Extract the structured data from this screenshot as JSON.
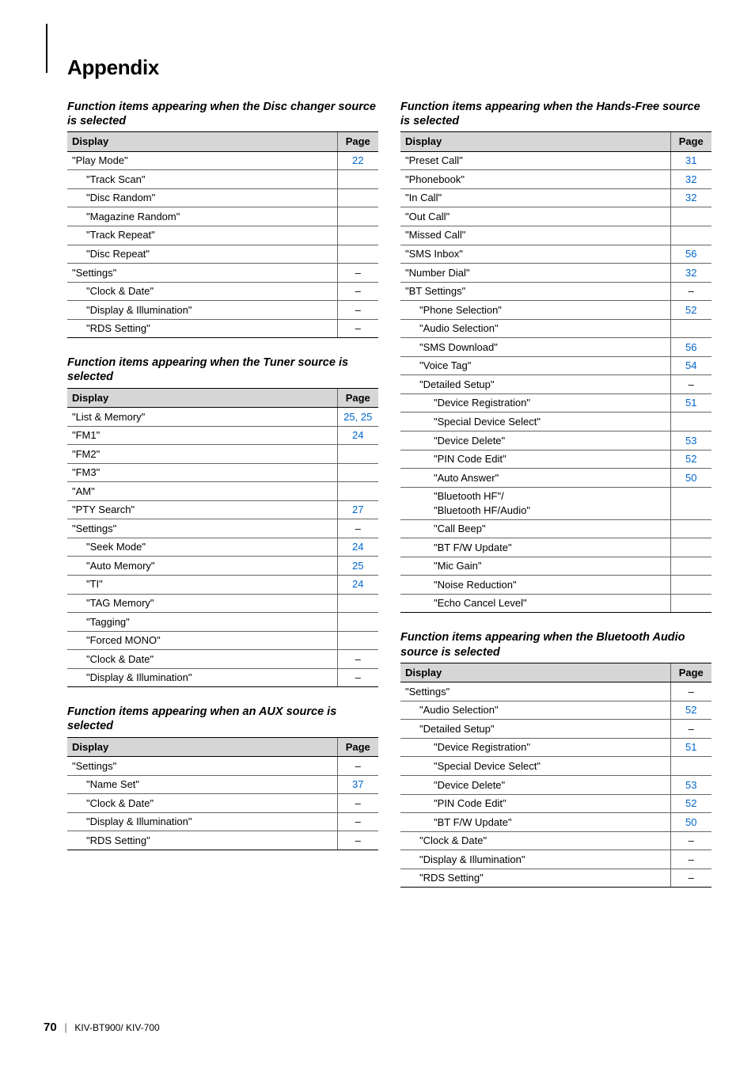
{
  "title": "Appendix",
  "footer": {
    "page": "70",
    "model": "KIV-BT900/ KIV-700"
  },
  "headers": {
    "display": "Display",
    "page": "Page"
  },
  "sections": {
    "disc": {
      "title": "Function items appearing when the Disc changer source is selected",
      "rows": [
        {
          "label": "\"Play Mode\"",
          "indent": 0,
          "page": "22",
          "link": true
        },
        {
          "label": "\"Track Scan\"",
          "indent": 1,
          "page": "",
          "link": false
        },
        {
          "label": "\"Disc Random\"",
          "indent": 1,
          "page": "",
          "link": false
        },
        {
          "label": "\"Magazine Random\"",
          "indent": 1,
          "page": "",
          "link": false
        },
        {
          "label": "\"Track Repeat\"",
          "indent": 1,
          "page": "",
          "link": false
        },
        {
          "label": "\"Disc Repeat\"",
          "indent": 1,
          "page": "",
          "link": false
        },
        {
          "label": "\"Settings\"",
          "indent": 0,
          "page": "–",
          "link": false
        },
        {
          "label": "\"Clock & Date\"",
          "indent": 1,
          "page": "–",
          "link": false
        },
        {
          "label": "\"Display & Illumination\"",
          "indent": 1,
          "page": "–",
          "link": false
        },
        {
          "label": "\"RDS Setting\"",
          "indent": 1,
          "page": "–",
          "link": false
        }
      ]
    },
    "tuner": {
      "title": "Function items appearing when the Tuner source is selected",
      "rows": [
        {
          "label": "\"List & Memory\"",
          "indent": 0,
          "page": "25, 25",
          "link": true
        },
        {
          "label": "\"FM1\"",
          "indent": 0,
          "page": "24",
          "link": true
        },
        {
          "label": "\"FM2\"",
          "indent": 0,
          "page": "",
          "link": false
        },
        {
          "label": "\"FM3\"",
          "indent": 0,
          "page": "",
          "link": false
        },
        {
          "label": "\"AM\"",
          "indent": 0,
          "page": "",
          "link": false
        },
        {
          "label": "\"PTY Search\"",
          "indent": 0,
          "page": "27",
          "link": true
        },
        {
          "label": "\"Settings\"",
          "indent": 0,
          "page": "–",
          "link": false
        },
        {
          "label": "\"Seek Mode\"",
          "indent": 1,
          "page": "24",
          "link": true
        },
        {
          "label": "\"Auto Memory\"",
          "indent": 1,
          "page": "25",
          "link": true
        },
        {
          "label": "\"TI\"",
          "indent": 1,
          "page": "24",
          "link": true
        },
        {
          "label": "\"TAG Memory\"",
          "indent": 1,
          "page": "",
          "link": false
        },
        {
          "label": "\"Tagging\"",
          "indent": 1,
          "page": "",
          "link": false
        },
        {
          "label": "\"Forced MONO\"",
          "indent": 1,
          "page": "",
          "link": false
        },
        {
          "label": "\"Clock & Date\"",
          "indent": 1,
          "page": "–",
          "link": false
        },
        {
          "label": "\"Display & Illumination\"",
          "indent": 1,
          "page": "–",
          "link": false
        }
      ]
    },
    "aux": {
      "title": "Function items appearing when an AUX source is selected",
      "rows": [
        {
          "label": "\"Settings\"",
          "indent": 0,
          "page": "–",
          "link": false
        },
        {
          "label": "\"Name Set\"",
          "indent": 1,
          "page": "37",
          "link": true
        },
        {
          "label": "\"Clock & Date\"",
          "indent": 1,
          "page": "–",
          "link": false
        },
        {
          "label": "\"Display & Illumination\"",
          "indent": 1,
          "page": "–",
          "link": false
        },
        {
          "label": "\"RDS Setting\"",
          "indent": 1,
          "page": "–",
          "link": false
        }
      ]
    },
    "hf": {
      "title": "Function items appearing when the Hands-Free source is selected",
      "rows": [
        {
          "label": "\"Preset Call\"",
          "indent": 0,
          "page": "31",
          "link": true
        },
        {
          "label": "\"Phonebook\"",
          "indent": 0,
          "page": "32",
          "link": true
        },
        {
          "label": "\"In Call\"",
          "indent": 0,
          "page": "32",
          "link": true
        },
        {
          "label": "\"Out Call\"",
          "indent": 0,
          "page": "",
          "link": false
        },
        {
          "label": "\"Missed Call\"",
          "indent": 0,
          "page": "",
          "link": false
        },
        {
          "label": "\"SMS Inbox\"",
          "indent": 0,
          "page": "56",
          "link": true
        },
        {
          "label": "\"Number Dial\"",
          "indent": 0,
          "page": "32",
          "link": true
        },
        {
          "label": "\"BT Settings\"",
          "indent": 0,
          "page": "–",
          "link": false
        },
        {
          "label": "\"Phone Selection\"",
          "indent": 1,
          "page": "52",
          "link": true
        },
        {
          "label": "\"Audio Selection\"",
          "indent": 1,
          "page": "",
          "link": false
        },
        {
          "label": "\"SMS Download\"",
          "indent": 1,
          "page": "56",
          "link": true
        },
        {
          "label": "\"Voice Tag\"",
          "indent": 1,
          "page": "54",
          "link": true
        },
        {
          "label": "\"Detailed Setup\"",
          "indent": 1,
          "page": "–",
          "link": false
        },
        {
          "label": "\"Device Registration\"",
          "indent": 2,
          "page": "51",
          "link": true
        },
        {
          "label": "\"Special Device Select\"",
          "indent": 2,
          "page": "",
          "link": false
        },
        {
          "label": "\"Device Delete\"",
          "indent": 2,
          "page": "53",
          "link": true
        },
        {
          "label": "\"PIN Code Edit\"",
          "indent": 2,
          "page": "52",
          "link": true
        },
        {
          "label": "\"Auto Answer\"",
          "indent": 2,
          "page": "50",
          "link": true
        },
        {
          "label": "\"Bluetooth HF\"/\n\"Bluetooth HF/Audio\"",
          "indent": 2,
          "page": "",
          "link": false
        },
        {
          "label": "\"Call Beep\"",
          "indent": 2,
          "page": "",
          "link": false
        },
        {
          "label": "\"BT F/W Update\"",
          "indent": 2,
          "page": "",
          "link": false
        },
        {
          "label": "\"Mic Gain\"",
          "indent": 2,
          "page": "",
          "link": false
        },
        {
          "label": "\"Noise Reduction\"",
          "indent": 2,
          "page": "",
          "link": false
        },
        {
          "label": "\"Echo Cancel Level\"",
          "indent": 2,
          "page": "",
          "link": false
        }
      ]
    },
    "bta": {
      "title": "Function items appearing when the Bluetooth Audio source is selected",
      "rows": [
        {
          "label": "\"Settings\"",
          "indent": 0,
          "page": "–",
          "link": false
        },
        {
          "label": "\"Audio Selection\"",
          "indent": 1,
          "page": "52",
          "link": true
        },
        {
          "label": "\"Detailed Setup\"",
          "indent": 1,
          "page": "–",
          "link": false
        },
        {
          "label": "\"Device Registration\"",
          "indent": 2,
          "page": "51",
          "link": true
        },
        {
          "label": "\"Special Device Select\"",
          "indent": 2,
          "page": "",
          "link": false
        },
        {
          "label": "\"Device Delete\"",
          "indent": 2,
          "page": "53",
          "link": true
        },
        {
          "label": "\"PIN Code Edit\"",
          "indent": 2,
          "page": "52",
          "link": true
        },
        {
          "label": "\"BT F/W Update\"",
          "indent": 2,
          "page": "50",
          "link": true
        },
        {
          "label": "\"Clock & Date\"",
          "indent": 1,
          "page": "–",
          "link": false
        },
        {
          "label": "\"Display & Illumination\"",
          "indent": 1,
          "page": "–",
          "link": false
        },
        {
          "label": "\"RDS Setting\"",
          "indent": 1,
          "page": "–",
          "link": false
        }
      ]
    }
  }
}
